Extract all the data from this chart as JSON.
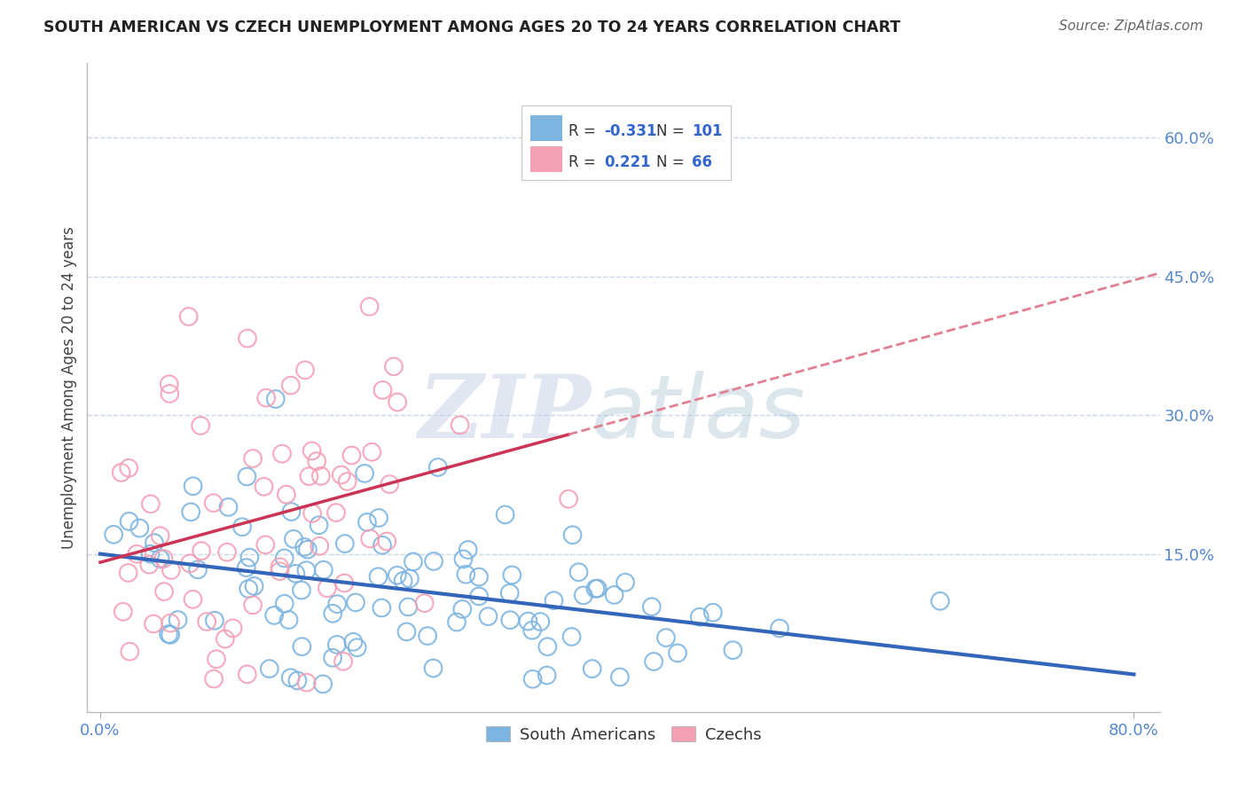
{
  "title": "SOUTH AMERICAN VS CZECH UNEMPLOYMENT AMONG AGES 20 TO 24 YEARS CORRELATION CHART",
  "source": "Source: ZipAtlas.com",
  "ylabel": "Unemployment Among Ages 20 to 24 years",
  "x_tick_labels": [
    "0.0%",
    "80.0%"
  ],
  "x_tick_positions": [
    0.0,
    0.8
  ],
  "y_ticks_right": [
    0.15,
    0.3,
    0.45,
    0.6
  ],
  "y_tick_labels_right": [
    "15.0%",
    "30.0%",
    "45.0%",
    "60.0%"
  ],
  "xlim": [
    -0.01,
    0.82
  ],
  "ylim": [
    -0.02,
    0.68
  ],
  "blue_color": "#7eb5e0",
  "pink_color": "#f4a0b5",
  "blue_line_color": "#3366bb",
  "pink_line_color": "#cc3355",
  "pink_dash_color": "#e08090",
  "blue_R": -0.331,
  "blue_N": 101,
  "pink_R": 0.221,
  "pink_N": 66,
  "watermark_zip": "ZIP",
  "watermark_atlas": "atlas",
  "legend_south_americans": "South Americans",
  "legend_czechs": "Czechs",
  "background_color": "#ffffff",
  "grid_color": "#c8d8ea",
  "title_color": "#222222",
  "source_color": "#666666",
  "axis_label_color": "#444444",
  "legend_R_color": "#3366cc",
  "tick_color": "#5588cc",
  "seed": 42
}
